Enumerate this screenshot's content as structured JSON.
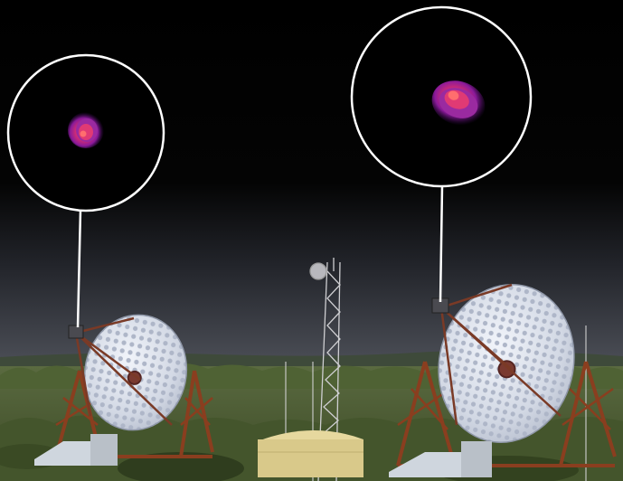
{
  "scene": {
    "colors": {
      "sky_top": "#000000",
      "sky_bottom": "#4a4d55",
      "vegetation": "#4f6234",
      "dish_fill": "#d7dde8",
      "mount_structure": "#8a3e1f",
      "inset_ring": "#ffffff",
      "source_glow": "#c83a6a"
    },
    "insets": [
      {
        "name": "left-telescope-camera-image",
        "glow_icon": "gamma-ray-source-icon"
      },
      {
        "name": "right-telescope-camera-image",
        "glow_icon": "gamma-ray-source-icon"
      }
    ]
  }
}
